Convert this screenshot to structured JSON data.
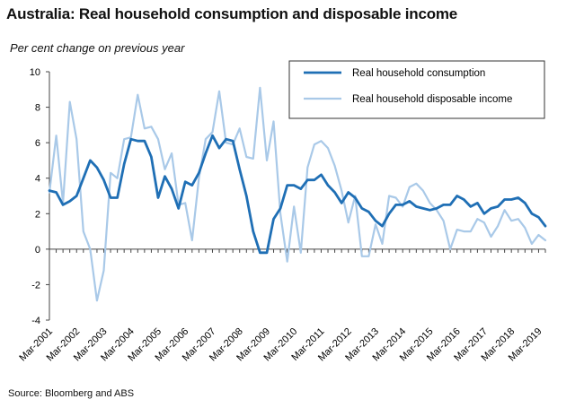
{
  "chart_data": {
    "type": "line",
    "title": "Australia: Real household consumption and disposable income",
    "subtitle": "Per cent change on previous year",
    "source": "Source: Bloomberg and ABS",
    "ylim": [
      -4,
      10
    ],
    "yticks": [
      "10",
      "8",
      "6",
      "4",
      "2",
      "0",
      "-2",
      "-4"
    ],
    "ytick_values": [
      10,
      8,
      6,
      4,
      2,
      0,
      -2,
      -4
    ],
    "x_start": "Mar-2001",
    "x_labels": [
      "Mar-2001",
      "Mar-2002",
      "Mar-2003",
      "Mar-2004",
      "Mar-2005",
      "Mar-2006",
      "Mar-2007",
      "Mar-2008",
      "Mar-2009",
      "Mar-2010",
      "Mar-2011",
      "Mar-2012",
      "Mar-2013",
      "Mar-2014",
      "Mar-2015",
      "Mar-2016",
      "Mar-2017",
      "Mar-2018",
      "Mar-2019"
    ],
    "legend_position": "top-right",
    "series": [
      {
        "name": "Real household consumption",
        "color": "#1f6fb5",
        "values": [
          3.3,
          3.2,
          2.5,
          2.7,
          3.0,
          4.0,
          5.0,
          4.6,
          3.9,
          2.9,
          2.9,
          4.8,
          6.2,
          6.1,
          6.1,
          5.2,
          2.9,
          4.1,
          3.4,
          2.3,
          3.8,
          3.6,
          4.3,
          5.4,
          6.4,
          5.7,
          6.2,
          6.1,
          4.5,
          3.0,
          1.0,
          -0.2,
          -0.2,
          1.7,
          2.3,
          3.6,
          3.6,
          3.4,
          3.9,
          3.9,
          4.2,
          3.6,
          3.2,
          2.6,
          3.2,
          2.9,
          2.3,
          2.1,
          1.6,
          1.3,
          2.0,
          2.5,
          2.5,
          2.7,
          2.4,
          2.3,
          2.2,
          2.3,
          2.5,
          2.5,
          3.0,
          2.8,
          2.4,
          2.6,
          2.0,
          2.3,
          2.4,
          2.8,
          2.8,
          2.9,
          2.6,
          2.0,
          1.8,
          1.3
        ]
      },
      {
        "name": "Real  household disposable income",
        "color": "#a9c9e8",
        "values": [
          3.2,
          6.4,
          2.6,
          8.3,
          6.2,
          1.0,
          0.0,
          -2.9,
          -1.2,
          4.3,
          4.0,
          6.2,
          6.3,
          8.7,
          6.8,
          6.9,
          6.2,
          4.5,
          5.4,
          2.5,
          2.6,
          0.5,
          4.0,
          6.2,
          6.6,
          8.9,
          6.0,
          5.9,
          6.8,
          5.2,
          5.1,
          9.1,
          5.0,
          7.2,
          2.0,
          -0.7,
          2.4,
          -0.2,
          4.6,
          5.9,
          6.1,
          5.7,
          4.7,
          3.3,
          1.5,
          3.0,
          -0.4,
          -0.4,
          1.4,
          0.3,
          3.0,
          2.9,
          2.4,
          3.5,
          3.7,
          3.3,
          2.6,
          2.2,
          1.6,
          0.0,
          1.1,
          1.0,
          1.0,
          1.7,
          1.5,
          0.7,
          1.3,
          2.2,
          1.6,
          1.7,
          1.2,
          0.3,
          0.8,
          0.5
        ]
      }
    ]
  }
}
